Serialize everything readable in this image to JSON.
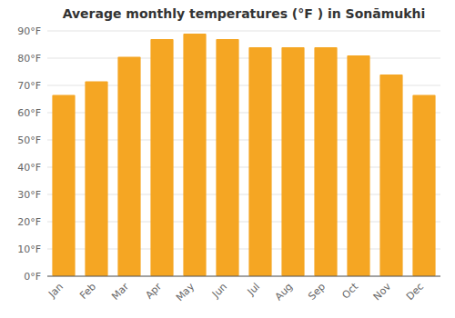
{
  "chart_data": {
    "type": "bar",
    "title": "Average monthly temperatures (°F ) in Sonāmukhi",
    "categories": [
      "Jan",
      "Feb",
      "Mar",
      "Apr",
      "May",
      "Jun",
      "Jul",
      "Aug",
      "Sep",
      "Oct",
      "Nov",
      "Dec"
    ],
    "values": [
      66.5,
      71.5,
      80.5,
      87.0,
      89.0,
      87.0,
      84.0,
      84.0,
      84.0,
      81.0,
      74.0,
      66.5
    ],
    "color": "#F5A623",
    "ylim": [
      0,
      90
    ],
    "yticks": [
      {
        "value": 0,
        "label": "0°F"
      },
      {
        "value": 10,
        "label": "10°F"
      },
      {
        "value": 20,
        "label": "20°F"
      },
      {
        "value": 30,
        "label": "30°F"
      },
      {
        "value": 40,
        "label": "40°F"
      },
      {
        "value": 50,
        "label": "50°F"
      },
      {
        "value": 60,
        "label": "60°F"
      },
      {
        "value": 70,
        "label": "70°F"
      },
      {
        "value": 80,
        "label": "80°F"
      },
      {
        "value": 90,
        "label": "90°F"
      }
    ],
    "grid": true
  }
}
